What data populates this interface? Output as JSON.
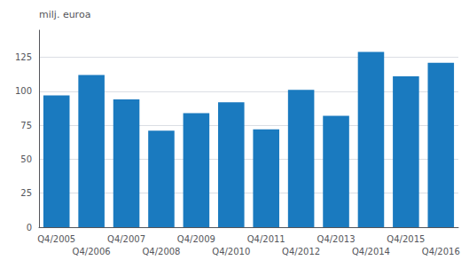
{
  "chart_data": {
    "type": "bar",
    "ylabel": "milj. euroa",
    "categories": [
      "Q4/2005",
      "Q4/2006",
      "Q4/2007",
      "Q4/2008",
      "Q4/2009",
      "Q4/2010",
      "Q4/2011",
      "Q4/2012",
      "Q4/2013",
      "Q4/2014",
      "Q4/2015",
      "Q4/2016"
    ],
    "values": [
      97,
      112,
      94,
      71,
      84,
      92,
      72,
      101,
      82,
      129,
      111,
      121
    ],
    "color": "#1a7abf",
    "ylim": [
      0,
      145
    ],
    "yticks": [
      0,
      25,
      50,
      75,
      100,
      125
    ],
    "grid": true
  }
}
